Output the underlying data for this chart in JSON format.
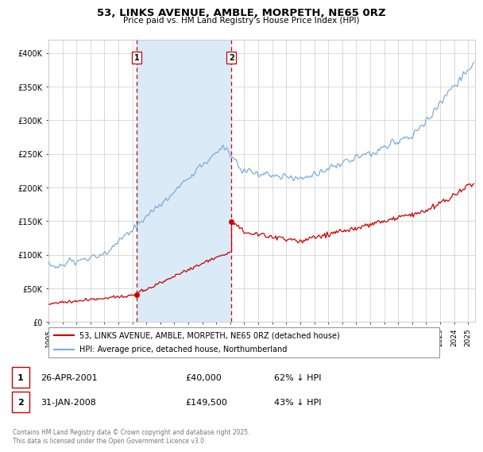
{
  "title": "53, LINKS AVENUE, AMBLE, MORPETH, NE65 0RZ",
  "subtitle": "Price paid vs. HM Land Registry's House Price Index (HPI)",
  "legend_line1": "53, LINKS AVENUE, AMBLE, MORPETH, NE65 0RZ (detached house)",
  "legend_line2": "HPI: Average price, detached house, Northumberland",
  "copyright": "Contains HM Land Registry data © Crown copyright and database right 2025.\nThis data is licensed under the Open Government Licence v3.0.",
  "sale1_date": "26-APR-2001",
  "sale1_price": "£40,000",
  "sale1_hpi": "62% ↓ HPI",
  "sale2_date": "31-JAN-2008",
  "sale2_price": "£149,500",
  "sale2_hpi": "43% ↓ HPI",
  "red_color": "#cc0000",
  "blue_color": "#7aaedc",
  "shading_color": "#daeaf7",
  "vline_color": "#cc0000",
  "grid_color": "#cccccc",
  "background_color": "#ffffff",
  "ylim": [
    0,
    420000
  ],
  "yticks": [
    0,
    50000,
    100000,
    150000,
    200000,
    250000,
    300000,
    350000,
    400000
  ],
  "sale1_x": 2001.32,
  "sale2_x": 2008.08,
  "sale1_y_red": 40000,
  "sale2_y_red": 149500,
  "xmin": 1995.0,
  "xmax": 2025.5
}
